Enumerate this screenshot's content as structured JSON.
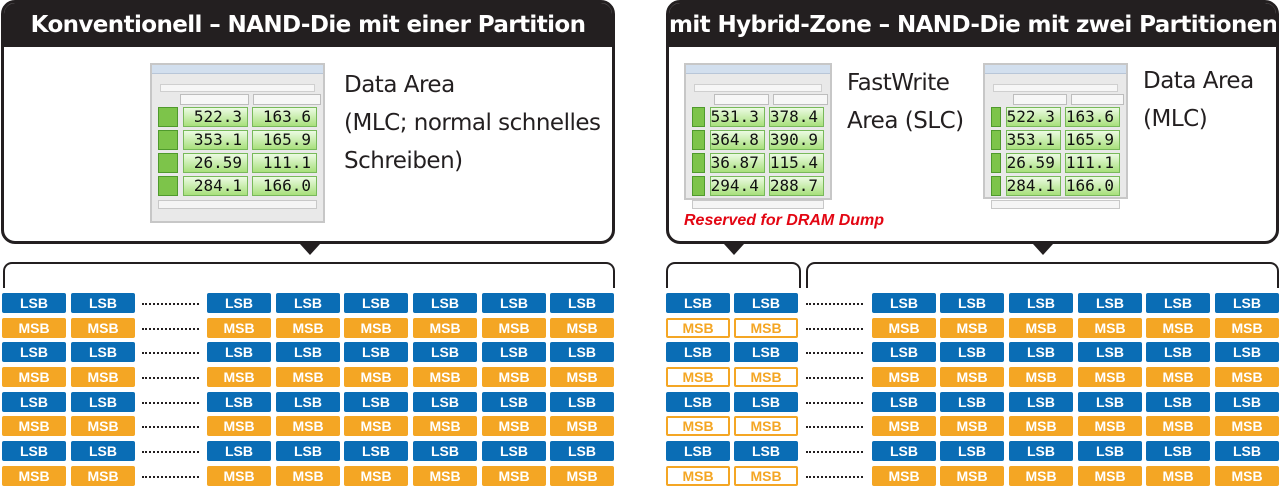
{
  "left": {
    "title": "Konventionell – NAND-Die mit einer Partition",
    "area_label": [
      "Data Area",
      "(MLC; normal schnelles",
      "Schreiben)"
    ],
    "benchmark_values": [
      [
        "522.3",
        "163.6"
      ],
      [
        "353.1",
        "165.9"
      ],
      [
        "26.59",
        "111.1"
      ],
      [
        "284.1",
        "166.0"
      ]
    ]
  },
  "right": {
    "title": "mit Hybrid-Zone – NAND-Die mit zwei Partitionen",
    "fastwrite_label": [
      "FastWrite",
      "Area (SLC)"
    ],
    "data_label": [
      "Data Area",
      "(MLC)"
    ],
    "fastwrite_values": [
      [
        "531.3",
        "378.4"
      ],
      [
        "364.8",
        "390.9"
      ],
      [
        "36.87",
        "115.4"
      ],
      [
        "294.4",
        "288.7"
      ]
    ],
    "data_values": [
      [
        "522.3",
        "163.6"
      ],
      [
        "353.1",
        "165.9"
      ],
      [
        "26.59",
        "111.1"
      ],
      [
        "284.1",
        "166.0"
      ]
    ],
    "reserved": "Reserved for DRAM Dump"
  },
  "cell_labels": {
    "lsb": "LSB",
    "msb": "MSB"
  },
  "colors": {
    "lsb": "#0a6db5",
    "msb": "#f4a624",
    "panel": "#231f20",
    "reserved": "#e30613"
  }
}
